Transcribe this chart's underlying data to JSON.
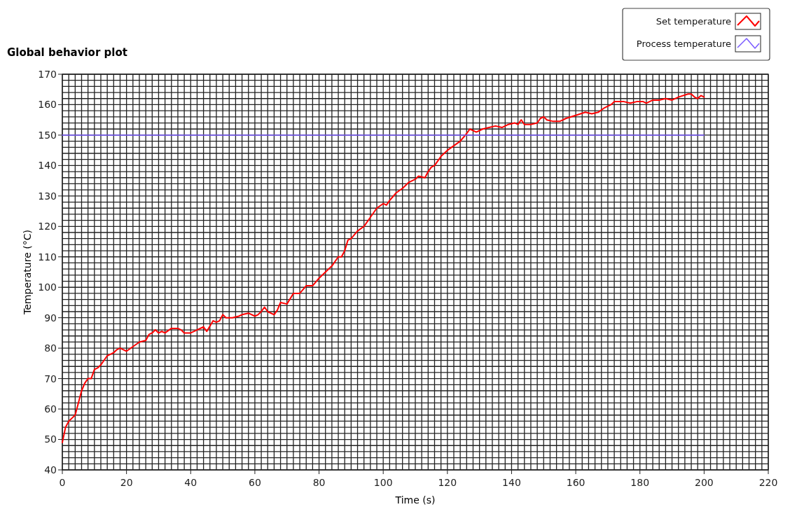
{
  "chart_data": {
    "type": "line",
    "title": "Global behavior plot",
    "xlabel": "Time (s)",
    "ylabel": "Temperature (°C)",
    "xlim": [
      0,
      220
    ],
    "xticks": [
      0,
      20,
      40,
      60,
      80,
      100,
      120,
      140,
      160,
      180,
      200,
      220
    ],
    "ylim": [
      40,
      170
    ],
    "yticks": [
      40,
      50,
      60,
      70,
      80,
      90,
      100,
      110,
      120,
      130,
      140,
      150,
      160,
      170
    ],
    "grid": true,
    "legend": "top right",
    "marker": "none",
    "line_style": "solid",
    "series": [
      {
        "name": "Set temperature",
        "color": "#ff0000",
        "x": [
          0,
          1,
          2,
          3,
          4,
          5,
          6,
          7,
          8,
          9,
          10,
          11,
          12,
          13,
          14,
          15,
          16,
          17,
          18,
          19,
          20,
          22,
          24,
          26,
          27,
          28,
          29,
          30,
          31,
          32,
          34,
          36,
          37,
          38,
          40,
          42,
          44,
          45,
          47,
          48,
          49,
          50,
          51,
          53,
          55,
          56,
          58,
          60,
          61,
          62,
          63,
          64,
          66,
          67,
          68,
          70,
          72,
          74,
          76,
          78,
          80,
          82,
          84,
          86,
          87,
          88,
          89,
          90,
          92,
          94,
          96,
          98,
          100,
          101,
          102,
          104,
          106,
          108,
          110,
          111,
          113,
          114,
          115,
          116,
          118,
          120,
          122,
          124,
          126,
          127,
          129,
          131,
          133,
          135,
          137,
          139,
          141,
          142,
          143,
          144,
          146,
          148,
          149,
          150,
          151,
          153,
          155,
          157,
          160,
          163,
          165,
          167,
          169,
          171,
          172,
          175,
          177,
          179,
          181,
          182,
          184,
          186,
          188,
          190,
          192,
          195,
          196,
          197,
          198,
          199,
          200
        ],
        "values": [
          49,
          54,
          56,
          57,
          58,
          62,
          66,
          68.5,
          70,
          70,
          73,
          73.5,
          74.5,
          76,
          77.5,
          78,
          78.5,
          79.5,
          80,
          79.5,
          79,
          80.5,
          82,
          82.5,
          84.5,
          85,
          86,
          85,
          85.5,
          85,
          86.5,
          86.5,
          86,
          85,
          85,
          86,
          87,
          85.5,
          89,
          88.5,
          89,
          91,
          90,
          90,
          90.5,
          91,
          91.5,
          90.5,
          91,
          92,
          93.5,
          92,
          91,
          92.5,
          95,
          94.5,
          98,
          98,
          100.5,
          100.5,
          103,
          105,
          107,
          110,
          110,
          112,
          115.5,
          116,
          118.5,
          120,
          123,
          126,
          127.5,
          127,
          128.5,
          131,
          132.5,
          134.5,
          135.5,
          136.5,
          136,
          138,
          139.5,
          140,
          143,
          145,
          146.5,
          148,
          150.5,
          152,
          151,
          152,
          152.5,
          153,
          152.5,
          153.5,
          154,
          153.5,
          155,
          153.5,
          153.5,
          154,
          155.5,
          156,
          155,
          154.5,
          154.5,
          155.5,
          156.5,
          157.5,
          157,
          157.5,
          159,
          160,
          161,
          161,
          160.5,
          161,
          161,
          160.5,
          161.5,
          161.5,
          162,
          161.5,
          162.5,
          163.5,
          163.5,
          162.5,
          162,
          163,
          162.5
        ]
      },
      {
        "name": "Process temperature",
        "color": "#7b5cff",
        "x": [
          0,
          200
        ],
        "values": [
          150,
          150
        ]
      }
    ]
  }
}
